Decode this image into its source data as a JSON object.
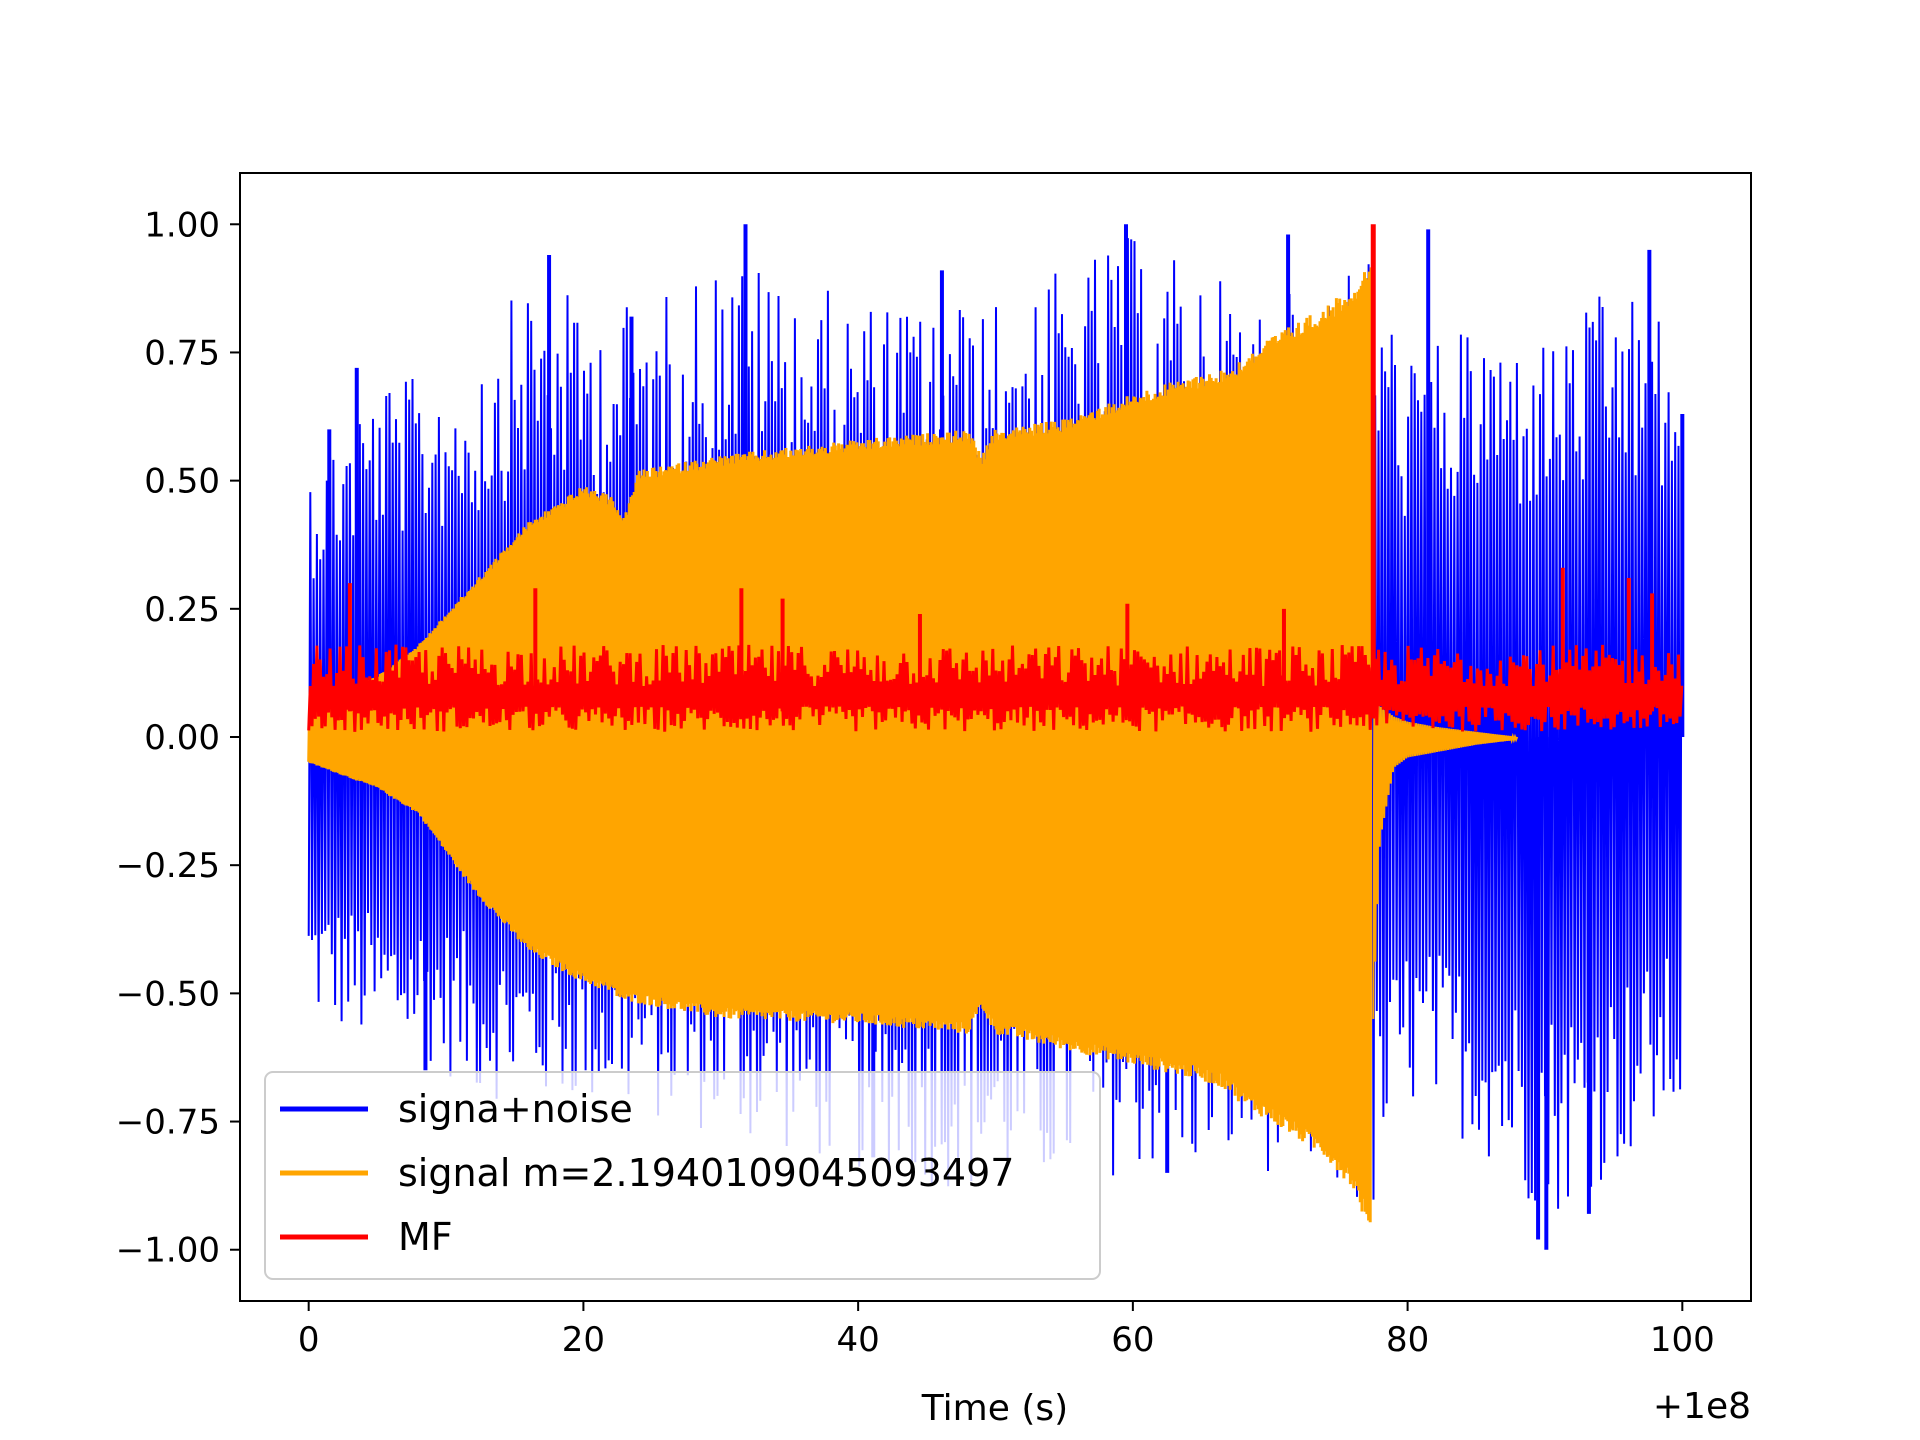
{
  "chart_data": {
    "type": "line",
    "title": "",
    "xlabel": "Time (s)",
    "ylabel": "",
    "x_offset_label": "+1e8",
    "xlim": [
      -5,
      105
    ],
    "ylim": [
      -1.1,
      1.1
    ],
    "x_ticks": [
      0,
      20,
      40,
      60,
      80,
      100
    ],
    "x_tick_labels": [
      "0",
      "20",
      "40",
      "60",
      "80",
      "100"
    ],
    "y_ticks": [
      1.0,
      0.75,
      0.5,
      0.25,
      0.0,
      -0.25,
      -0.5,
      -0.75,
      -1.0
    ],
    "y_tick_labels": [
      "1.00",
      "0.75",
      "0.50",
      "0.25",
      "0.00",
      "−0.25",
      "−0.50",
      "−0.75",
      "−1.00"
    ],
    "grid": false,
    "legend_position": "lower-left",
    "series": [
      {
        "name": "signa+noise",
        "color": "#0000ff",
        "envelope": {
          "x": [
            0,
            5,
            8,
            12,
            16,
            20,
            25,
            30,
            40,
            50,
            60,
            70,
            77.5,
            78.5,
            80,
            85,
            90,
            95,
            100
          ],
          "upper": [
            0.55,
            0.7,
            0.7,
            0.75,
            0.9,
            0.85,
            0.85,
            0.95,
            0.85,
            0.85,
            0.98,
            0.85,
            0.95,
            0.85,
            0.75,
            0.8,
            0.78,
            0.88,
            0.8
          ],
          "lower": [
            -0.55,
            -0.62,
            -0.62,
            -0.7,
            -0.72,
            -0.72,
            -0.75,
            -0.78,
            -0.85,
            -0.9,
            -0.85,
            -0.85,
            -0.95,
            -0.85,
            -0.72,
            -0.8,
            -0.95,
            -0.85,
            -0.75
          ]
        },
        "spikes": [
          {
            "x": 1.5,
            "y": 0.6
          },
          {
            "x": 3.5,
            "y": 0.72
          },
          {
            "x": 17.5,
            "y": 0.94
          },
          {
            "x": 23.5,
            "y": 0.82
          },
          {
            "x": 31.8,
            "y": 1.0
          },
          {
            "x": 46.1,
            "y": 0.91
          },
          {
            "x": 59.5,
            "y": 1.0
          },
          {
            "x": 71.3,
            "y": 0.98
          },
          {
            "x": 81.5,
            "y": 0.99
          },
          {
            "x": 97.6,
            "y": 0.95
          },
          {
            "x": 8.5,
            "y": -0.65
          },
          {
            "x": 41.1,
            "y": -0.82
          },
          {
            "x": 62.5,
            "y": -0.85
          },
          {
            "x": 89.5,
            "y": -0.98
          },
          {
            "x": 90.1,
            "y": -1.0
          },
          {
            "x": 93.2,
            "y": -0.93
          },
          {
            "x": 100.0,
            "y": 0.63
          }
        ]
      },
      {
        "name": "signal m=2.1940109045093497",
        "color": "#ffa500",
        "envelope": {
          "x": [
            0,
            5,
            8,
            12,
            16,
            20,
            22,
            23,
            24,
            30,
            40,
            48,
            49,
            50,
            55,
            60,
            65,
            67,
            68,
            70,
            74,
            76,
            77,
            77.4
          ],
          "upper": [
            0.05,
            0.12,
            0.18,
            0.3,
            0.42,
            0.49,
            0.47,
            0.43,
            0.52,
            0.55,
            0.58,
            0.6,
            0.55,
            0.6,
            0.62,
            0.67,
            0.71,
            0.72,
            0.74,
            0.78,
            0.84,
            0.88,
            0.92,
            0.95
          ],
          "lower": [
            -0.05,
            -0.1,
            -0.15,
            -0.3,
            -0.42,
            -0.48,
            -0.5,
            -0.52,
            -0.52,
            -0.55,
            -0.56,
            -0.58,
            -0.53,
            -0.58,
            -0.61,
            -0.64,
            -0.67,
            -0.69,
            -0.72,
            -0.75,
            -0.82,
            -0.88,
            -0.95,
            -1.0
          ]
        },
        "tail": {
          "x": [
            77.5,
            78,
            79,
            80,
            82,
            85,
            88
          ],
          "upper": [
            0.08,
            0.06,
            0.04,
            0.03,
            0.02,
            0.01,
            0.0
          ],
          "lower": [
            -0.55,
            -0.2,
            -0.06,
            -0.04,
            -0.03,
            -0.015,
            -0.005
          ]
        }
      },
      {
        "name": "MF",
        "color": "#ff0000",
        "baseline_upper": 0.18,
        "baseline_lower": 0.01,
        "peak": {
          "x": 77.5,
          "y": 1.0
        },
        "spikes": [
          {
            "x": 3,
            "y": 0.3
          },
          {
            "x": 16.5,
            "y": 0.29
          },
          {
            "x": 31.5,
            "y": 0.29
          },
          {
            "x": 34.5,
            "y": 0.27
          },
          {
            "x": 44.5,
            "y": 0.24
          },
          {
            "x": 59.6,
            "y": 0.26
          },
          {
            "x": 71.0,
            "y": 0.25
          },
          {
            "x": 91.3,
            "y": 0.33
          },
          {
            "x": 96.1,
            "y": 0.31
          },
          {
            "x": 97.8,
            "y": 0.28
          }
        ]
      }
    ]
  }
}
